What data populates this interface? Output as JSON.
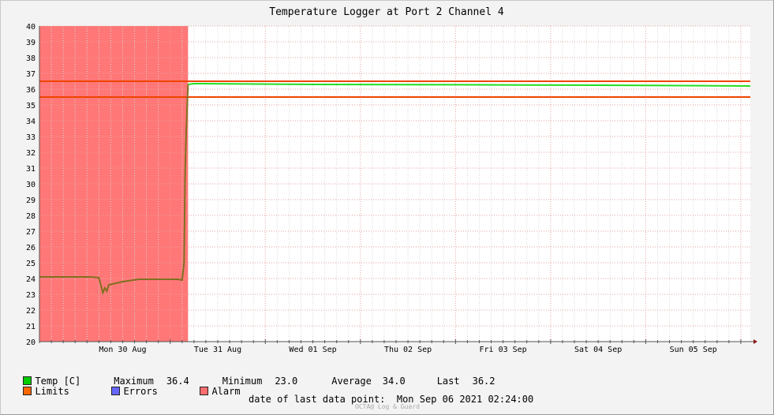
{
  "chart_data": {
    "type": "line",
    "title": "Temperature Logger at Port 2 Channel 4",
    "xlabel": "",
    "ylabel": "",
    "x_range": [
      "2021-08-29 15:00",
      "2021-09-06 02:24"
    ],
    "ylim": [
      20,
      40
    ],
    "y_ticks": [
      20,
      21,
      22,
      23,
      24,
      25,
      26,
      27,
      28,
      29,
      30,
      31,
      32,
      33,
      34,
      35,
      36,
      37,
      38,
      39,
      40
    ],
    "x_tick_labels": [
      {
        "label": "Mon 30 Aug",
        "at": "2021-08-30 12:00"
      },
      {
        "label": "Tue 31 Aug",
        "at": "2021-08-31 12:00"
      },
      {
        "label": "Wed 01 Sep",
        "at": "2021-09-01 12:00"
      },
      {
        "label": "Thu 02 Sep",
        "at": "2021-09-02 12:00"
      },
      {
        "label": "Fri 03 Sep",
        "at": "2021-09-03 12:00"
      },
      {
        "label": "Sat 04 Sep",
        "at": "2021-09-04 12:00"
      },
      {
        "label": "Sun 05 Sep",
        "at": "2021-09-05 12:00"
      }
    ],
    "major_grid_times": [
      "2021-08-31 00:00",
      "2021-09-01 00:00",
      "2021-09-02 00:00",
      "2021-09-03 00:00",
      "2021-09-04 00:00",
      "2021-09-05 00:00",
      "2021-09-06 00:00"
    ],
    "grid": true,
    "alarm_period": {
      "start": "2021-08-29 15:00",
      "end": "2021-08-31 04:30"
    },
    "limits": [
      35.5,
      36.5
    ],
    "series": [
      {
        "name": "Temp [C]",
        "points": [
          [
            "2021-08-29 15:00",
            24.1
          ],
          [
            "2021-08-30 04:00",
            24.1
          ],
          [
            "2021-08-30 06:00",
            24.05
          ],
          [
            "2021-08-30 07:00",
            23.1
          ],
          [
            "2021-08-30 07:30",
            23.4
          ],
          [
            "2021-08-30 08:00",
            23.2
          ],
          [
            "2021-08-30 08:30",
            23.6
          ],
          [
            "2021-08-30 12:00",
            23.8
          ],
          [
            "2021-08-30 16:00",
            23.95
          ],
          [
            "2021-08-30 22:00",
            23.95
          ],
          [
            "2021-08-31 02:00",
            23.95
          ],
          [
            "2021-08-31 03:00",
            23.9
          ],
          [
            "2021-08-31 03:30",
            25.0
          ],
          [
            "2021-08-31 03:45",
            30.6
          ],
          [
            "2021-08-31 04:00",
            33.0
          ],
          [
            "2021-08-31 04:30",
            36.3
          ],
          [
            "2021-08-31 06:00",
            36.35
          ],
          [
            "2021-09-01 12:00",
            36.3
          ],
          [
            "2021-09-03 00:00",
            36.28
          ],
          [
            "2021-09-04 12:00",
            36.25
          ],
          [
            "2021-09-06 02:24",
            36.2
          ]
        ]
      }
    ]
  },
  "legend": {
    "temp": {
      "label": "Temp [C]",
      "color": "#00cc00"
    },
    "limits": {
      "label": "Limits",
      "color": "#ff6600"
    },
    "errors": {
      "label": "Errors",
      "color": "#6666ff"
    },
    "alarm": {
      "label": "Alarm",
      "color": "#ff6e6e"
    },
    "stats": [
      {
        "label": "Maximum",
        "value": "36.4"
      },
      {
        "label": "Minimum",
        "value": "23.0"
      },
      {
        "label": "Average",
        "value": "34.0"
      },
      {
        "label": "Last",
        "value": "36.2"
      }
    ]
  },
  "footer": {
    "last_point_label": "date of last data point:",
    "last_point_value": "Mon Sep 06 2021 02:24:00",
    "watermark": "OCTA@ Log & Guard"
  },
  "colors": {
    "line_alarm": "#807020",
    "line_normal": "#22dd22",
    "limit_line": "#ee4400",
    "alarm_fill": "#ff7777",
    "grid_major": "#e8a0a0",
    "grid_minor": "#d8d8d8",
    "axis": "#555555",
    "plot_bg": "#ffffff"
  }
}
